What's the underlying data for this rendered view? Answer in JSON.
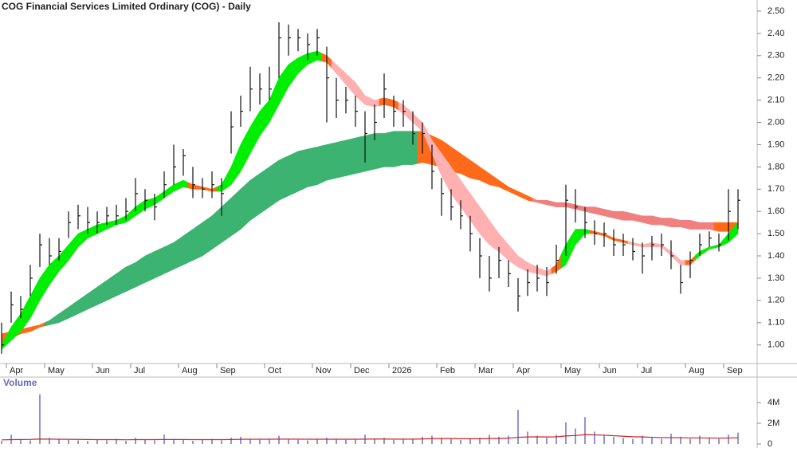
{
  "chart_data": {
    "type": "ohlc",
    "title": "COG Financial Services Limited Ordinary (COG) - Daily",
    "categories": [
      null,
      "Apr",
      null,
      null,
      null,
      "May",
      null,
      null,
      null,
      null,
      "Jun",
      null,
      null,
      null,
      "Jul",
      null,
      null,
      null,
      null,
      "Aug",
      null,
      null,
      null,
      "Sep",
      null,
      null,
      null,
      null,
      "Oct",
      null,
      null,
      null,
      null,
      "Nov",
      null,
      null,
      null,
      "Dec",
      null,
      null,
      null,
      "2026",
      null,
      null,
      null,
      null,
      "Feb",
      null,
      null,
      null,
      "Mar",
      null,
      null,
      null,
      "Apr",
      null,
      null,
      null,
      null,
      "May",
      null,
      null,
      null,
      "Jun",
      null,
      null,
      null,
      "Jul",
      null,
      null,
      null,
      null,
      "Aug",
      null,
      null,
      null,
      "Sep",
      null
    ],
    "close": [
      1.0,
      1.18,
      1.16,
      1.3,
      1.45,
      1.4,
      1.42,
      1.55,
      1.58,
      1.55,
      1.55,
      1.58,
      1.58,
      1.6,
      1.68,
      1.65,
      1.62,
      1.72,
      1.8,
      1.85,
      1.72,
      1.7,
      1.72,
      1.68,
      1.98,
      2.05,
      2.15,
      2.15,
      2.15,
      2.38,
      2.38,
      2.38,
      2.35,
      2.38,
      2.2,
      2.1,
      2.1,
      2.05,
      1.95,
      2.0,
      2.15,
      2.05,
      2.05,
      1.95,
      1.95,
      1.78,
      1.68,
      1.62,
      1.58,
      1.5,
      1.4,
      1.3,
      1.38,
      1.32,
      1.22,
      1.28,
      1.3,
      1.28,
      1.38,
      1.65,
      1.62,
      1.55,
      1.5,
      1.5,
      1.45,
      1.45,
      1.42,
      1.4,
      1.45,
      1.45,
      1.4,
      1.28,
      1.38,
      1.45,
      1.48,
      1.45,
      1.6,
      1.65
    ],
    "high": [
      1.1,
      1.24,
      1.22,
      1.36,
      1.5,
      1.48,
      1.48,
      1.6,
      1.63,
      1.62,
      1.6,
      1.62,
      1.63,
      1.66,
      1.75,
      1.7,
      1.68,
      1.78,
      1.9,
      1.88,
      1.8,
      1.75,
      1.78,
      1.75,
      2.05,
      2.12,
      2.25,
      2.22,
      2.25,
      2.45,
      2.44,
      2.42,
      2.4,
      2.42,
      2.34,
      2.2,
      2.16,
      2.12,
      2.05,
      2.08,
      2.22,
      2.12,
      2.1,
      2.05,
      2.0,
      1.9,
      1.75,
      1.7,
      1.65,
      1.58,
      1.48,
      1.4,
      1.44,
      1.38,
      1.3,
      1.34,
      1.36,
      1.35,
      1.45,
      1.72,
      1.7,
      1.62,
      1.56,
      1.55,
      1.52,
      1.5,
      1.48,
      1.46,
      1.49,
      1.5,
      1.47,
      1.36,
      1.42,
      1.5,
      1.51,
      1.5,
      1.7,
      1.7
    ],
    "low": [
      0.96,
      1.1,
      1.12,
      1.22,
      1.35,
      1.36,
      1.38,
      1.48,
      1.52,
      1.5,
      1.5,
      1.54,
      1.54,
      1.56,
      1.6,
      1.6,
      1.56,
      1.66,
      1.72,
      1.76,
      1.66,
      1.66,
      1.66,
      1.58,
      1.86,
      1.98,
      2.05,
      2.08,
      2.1,
      2.2,
      2.3,
      2.32,
      2.28,
      2.3,
      2.0,
      2.02,
      2.04,
      1.98,
      1.82,
      1.92,
      2.02,
      1.98,
      1.98,
      1.9,
      1.86,
      1.7,
      1.58,
      1.56,
      1.52,
      1.42,
      1.3,
      1.24,
      1.3,
      1.26,
      1.15,
      1.22,
      1.24,
      1.22,
      1.32,
      1.4,
      1.55,
      1.48,
      1.45,
      1.44,
      1.4,
      1.4,
      1.38,
      1.32,
      1.38,
      1.4,
      1.34,
      1.23,
      1.3,
      1.4,
      1.44,
      1.42,
      1.47,
      1.52
    ],
    "bar_color": "#111111",
    "ylim": [
      0.92,
      2.55
    ],
    "yticks": [
      {
        "value": 1.0,
        "label": "1.00"
      },
      {
        "value": 1.1,
        "label": "1.10"
      },
      {
        "value": 1.2,
        "label": "1.20"
      },
      {
        "value": 1.3,
        "label": "1.30"
      },
      {
        "value": 1.4,
        "label": "1.40"
      },
      {
        "value": 1.5,
        "label": "1.50"
      },
      {
        "value": 1.6,
        "label": "1.60"
      },
      {
        "value": 1.7,
        "label": "1.70"
      },
      {
        "value": 1.8,
        "label": "1.80"
      },
      {
        "value": 1.9,
        "label": "1.90"
      },
      {
        "value": 2.0,
        "label": "2.00"
      },
      {
        "value": 2.1,
        "label": "2.10"
      },
      {
        "value": 2.2,
        "label": "2.20"
      },
      {
        "value": 2.3,
        "label": "2.30"
      },
      {
        "value": 2.4,
        "label": "2.40"
      },
      {
        "value": 2.5,
        "label": "2.50"
      }
    ],
    "ribbons": [
      {
        "upper": [
          1.05,
          1.06,
          1.07,
          1.08,
          1.09,
          1.11,
          1.14,
          1.17,
          1.2,
          1.23,
          1.26,
          1.29,
          1.32,
          1.35,
          1.37,
          1.4,
          1.42,
          1.44,
          1.46,
          1.49,
          1.52,
          1.55,
          1.58,
          1.62,
          1.66,
          1.7,
          1.74,
          1.77,
          1.8,
          1.83,
          1.85,
          1.87,
          1.88,
          1.89,
          1.9,
          1.91,
          1.92,
          1.93,
          1.94,
          1.95,
          1.95,
          1.96,
          1.96,
          1.96,
          1.96,
          1.94,
          1.92,
          1.89,
          1.86,
          1.83,
          1.8,
          1.77,
          1.74,
          1.71,
          1.69,
          1.67,
          1.65,
          1.65,
          1.64,
          1.64,
          1.63,
          1.62,
          1.62,
          1.61,
          1.6,
          1.6,
          1.59,
          1.58,
          1.58,
          1.57,
          1.57,
          1.56,
          1.56,
          1.55,
          1.55,
          1.55,
          1.55,
          1.55
        ],
        "lower": [
          1.0,
          1.03,
          1.05,
          1.06,
          1.08,
          1.09,
          1.1,
          1.12,
          1.14,
          1.16,
          1.18,
          1.2,
          1.22,
          1.24,
          1.26,
          1.28,
          1.3,
          1.32,
          1.34,
          1.36,
          1.38,
          1.4,
          1.43,
          1.46,
          1.49,
          1.52,
          1.56,
          1.59,
          1.62,
          1.65,
          1.67,
          1.69,
          1.71,
          1.72,
          1.74,
          1.75,
          1.76,
          1.77,
          1.78,
          1.79,
          1.8,
          1.8,
          1.81,
          1.81,
          1.82,
          1.81,
          1.8,
          1.78,
          1.77,
          1.75,
          1.74,
          1.72,
          1.71,
          1.69,
          1.67,
          1.65,
          1.64,
          1.63,
          1.62,
          1.62,
          1.61,
          1.6,
          1.59,
          1.58,
          1.57,
          1.56,
          1.56,
          1.55,
          1.54,
          1.54,
          1.53,
          1.53,
          1.52,
          1.52,
          1.52,
          1.51,
          1.51,
          1.51
        ],
        "colors": [
          "#ff6a1a",
          "#ff6a1a",
          "#ff6a1a",
          "#ff6a1a",
          "#ff6a1a",
          "#3cb371",
          "#3cb371",
          "#3cb371",
          "#3cb371",
          "#3cb371",
          "#3cb371",
          "#3cb371",
          "#3cb371",
          "#3cb371",
          "#3cb371",
          "#3cb371",
          "#3cb371",
          "#3cb371",
          "#3cb371",
          "#3cb371",
          "#3cb371",
          "#3cb371",
          "#3cb371",
          "#3cb371",
          "#3cb371",
          "#3cb371",
          "#3cb371",
          "#3cb371",
          "#3cb371",
          "#3cb371",
          "#3cb371",
          "#3cb371",
          "#3cb371",
          "#3cb371",
          "#3cb371",
          "#3cb371",
          "#3cb371",
          "#3cb371",
          "#3cb371",
          "#3cb371",
          "#3cb371",
          "#3cb371",
          "#3cb371",
          "#3cb371",
          "#ff6a1a",
          "#ff6a1a",
          "#ff6a1a",
          "#ff6a1a",
          "#ff6a1a",
          "#ff6a1a",
          "#ff6a1a",
          "#ff6a1a",
          "#ff6a1a",
          "#ff6a1a",
          "#ff6a1a",
          "#ff6a1a",
          "#f08080",
          "#f08080",
          "#f08080",
          "#f08080",
          "#f08080",
          "#f08080",
          "#f08080",
          "#f08080",
          "#f08080",
          "#f08080",
          "#f08080",
          "#f08080",
          "#f08080",
          "#f08080",
          "#f08080",
          "#f08080",
          "#f08080",
          "#f08080",
          "#f08080",
          "#ff6a1a",
          "#ff6a1a",
          "#ff6a1a"
        ]
      },
      {
        "upper": [
          1.0,
          1.08,
          1.14,
          1.22,
          1.3,
          1.36,
          1.4,
          1.45,
          1.5,
          1.52,
          1.54,
          1.55,
          1.56,
          1.58,
          1.62,
          1.65,
          1.66,
          1.69,
          1.72,
          1.74,
          1.72,
          1.71,
          1.7,
          1.72,
          1.8,
          1.9,
          1.98,
          2.05,
          2.1,
          2.2,
          2.26,
          2.29,
          2.31,
          2.32,
          2.3,
          2.26,
          2.22,
          2.18,
          2.12,
          2.1,
          2.11,
          2.1,
          2.08,
          2.04,
          2.0,
          1.92,
          1.86,
          1.8,
          1.74,
          1.68,
          1.62,
          1.56,
          1.5,
          1.45,
          1.4,
          1.37,
          1.35,
          1.33,
          1.36,
          1.45,
          1.52,
          1.52,
          1.51,
          1.5,
          1.48,
          1.47,
          1.46,
          1.45,
          1.46,
          1.45,
          1.42,
          1.38,
          1.38,
          1.42,
          1.44,
          1.45,
          1.5,
          1.55
        ],
        "lower": [
          0.98,
          1.02,
          1.06,
          1.12,
          1.2,
          1.27,
          1.33,
          1.38,
          1.44,
          1.48,
          1.5,
          1.52,
          1.54,
          1.55,
          1.58,
          1.61,
          1.63,
          1.66,
          1.69,
          1.71,
          1.7,
          1.7,
          1.69,
          1.69,
          1.72,
          1.78,
          1.86,
          1.94,
          2.0,
          2.08,
          2.16,
          2.22,
          2.26,
          2.28,
          2.27,
          2.22,
          2.17,
          2.12,
          2.08,
          2.07,
          2.08,
          2.07,
          2.04,
          2.0,
          1.96,
          1.86,
          1.76,
          1.68,
          1.62,
          1.56,
          1.5,
          1.45,
          1.42,
          1.38,
          1.35,
          1.33,
          1.32,
          1.31,
          1.33,
          1.36,
          1.45,
          1.5,
          1.5,
          1.49,
          1.47,
          1.46,
          1.45,
          1.44,
          1.44,
          1.44,
          1.4,
          1.36,
          1.36,
          1.4,
          1.43,
          1.44,
          1.46,
          1.5
        ],
        "colors": [
          "#00ee00",
          "#00ee00",
          "#00ee00",
          "#00ee00",
          "#00ee00",
          "#00ee00",
          "#00ee00",
          "#00ee00",
          "#00ee00",
          "#00ee00",
          "#00ee00",
          "#00ee00",
          "#00ee00",
          "#00ee00",
          "#00ee00",
          "#00ee00",
          "#00ee00",
          "#00ee00",
          "#00ee00",
          "#00ee00",
          "#ff6a1a",
          "#ff6a1a",
          "#ff6a1a",
          "#00ee00",
          "#00ee00",
          "#00ee00",
          "#00ee00",
          "#00ee00",
          "#00ee00",
          "#00ee00",
          "#00ee00",
          "#00ee00",
          "#00ee00",
          "#00ee00",
          "#ff6a1a",
          "#ffb0b0",
          "#ffb0b0",
          "#ffb0b0",
          "#ffb0b0",
          "#ffb0b0",
          "#ff6a1a",
          "#ff6a1a",
          "#ffb0b0",
          "#ffb0b0",
          "#ffb0b0",
          "#ffb0b0",
          "#ffb0b0",
          "#ffb0b0",
          "#ffb0b0",
          "#ffb0b0",
          "#ffb0b0",
          "#ffb0b0",
          "#ffb0b0",
          "#ffb0b0",
          "#ffb0b0",
          "#ffb0b0",
          "#ffb0b0",
          "#ffb0b0",
          "#ff6a1a",
          "#00ee00",
          "#00ee00",
          "#00ee00",
          "#ff6a1a",
          "#ff6a1a",
          "#ff6a1a",
          "#ff6a1a",
          "#ffb0b0",
          "#ffb0b0",
          "#ffb0b0",
          "#ffb0b0",
          "#ffb0b0",
          "#ffb0b0",
          "#ff6a1a",
          "#00ee00",
          "#00ee00",
          "#00ee00",
          "#00ee00",
          "#00ee00"
        ]
      }
    ],
    "volume": {
      "label": "Volume",
      "values": [
        300000,
        900000,
        400000,
        350000,
        4800000,
        600000,
        500000,
        400000,
        350000,
        300000,
        450000,
        350000,
        500000,
        300000,
        600000,
        400000,
        350000,
        900000,
        500000,
        450000,
        300000,
        400000,
        500000,
        350000,
        600000,
        700000,
        500000,
        400000,
        450000,
        800000,
        500000,
        400000,
        350000,
        500000,
        600000,
        450000,
        400000,
        500000,
        900000,
        500000,
        600000,
        400000,
        500000,
        450000,
        700000,
        800000,
        600000,
        500000,
        400000,
        500000,
        600000,
        900000,
        700000,
        800000,
        3300000,
        1200000,
        800000,
        600000,
        900000,
        2100000,
        1500000,
        2600000,
        1200000,
        900000,
        700000,
        600000,
        500000,
        800000,
        600000,
        500000,
        1000000,
        700000,
        500000,
        800000,
        600000,
        500000,
        900000,
        1100000
      ],
      "ma": [
        400000,
        420000,
        430000,
        440000,
        480000,
        470000,
        460000,
        450000,
        440000,
        430000,
        420000,
        420000,
        420000,
        410000,
        420000,
        420000,
        420000,
        430000,
        430000,
        430000,
        420000,
        420000,
        420000,
        420000,
        430000,
        450000,
        460000,
        460000,
        460000,
        470000,
        470000,
        470000,
        460000,
        460000,
        460000,
        460000,
        460000,
        460000,
        470000,
        480000,
        480000,
        470000,
        470000,
        470000,
        490000,
        520000,
        530000,
        530000,
        520000,
        510000,
        510000,
        530000,
        550000,
        560000,
        650000,
        680000,
        690000,
        680000,
        690000,
        780000,
        820000,
        900000,
        880000,
        850000,
        800000,
        750000,
        700000,
        680000,
        650000,
        620000,
        620000,
        610000,
        590000,
        590000,
        580000,
        570000,
        580000,
        600000
      ],
      "color": "#7070c0",
      "ma_color": "#cc2222",
      "ylim": [
        0,
        6300000
      ],
      "yticks": [
        0,
        {
          "value": 2000000,
          "label": "2M"
        },
        {
          "value": 4000000,
          "label": "4M"
        }
      ]
    }
  }
}
